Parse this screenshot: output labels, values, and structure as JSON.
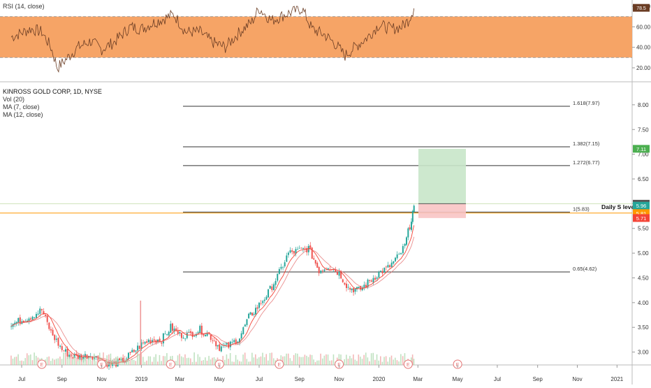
{
  "rsi_panel": {
    "title": "RSI (14, close)",
    "y_ticks": [
      "80.00",
      "60.00",
      "40.00",
      "20.00"
    ],
    "band": {
      "upper": 70,
      "lower": 30,
      "color": "#f6a466"
    },
    "current_label": "78.5"
  },
  "price_panel": {
    "legend": [
      "KINROSS GOLD CORP, 1D, NYSE",
      "Vol (20)",
      "MA (7, close)",
      "MA (12, close)"
    ],
    "y_ticks": [
      "8.00",
      "7.50",
      "7.00",
      "6.50",
      "6.00",
      "5.50",
      "5.00",
      "4.50",
      "4.00",
      "3.50",
      "3.00"
    ],
    "price_tags": [
      {
        "value": "7.11",
        "color": "#4caf50"
      },
      {
        "value": "6.00",
        "color": "#555555"
      },
      {
        "value": "5.96",
        "color": "#26a69a"
      },
      {
        "value": "5.81",
        "color": "#ff9800"
      },
      {
        "value": "5.71",
        "color": "#f44336"
      }
    ],
    "daily_level_label": "Daily S level",
    "earnings_marker": "E"
  },
  "x_ticks": [
    "Jul",
    "Sep",
    "Nov",
    "2019",
    "Mar",
    "May",
    "Jul",
    "Sep",
    "Nov",
    "2020",
    "Mar",
    "May",
    "Jul",
    "Sep",
    "Nov",
    "2021"
  ],
  "chart_data": {
    "type": "candlestick",
    "title": "KINROSS GOLD CORP, 1D, NYSE",
    "ylim": [
      2.65,
      8.35
    ],
    "fib_levels": [
      {
        "label": "1.618(7.97)",
        "value": 7.97
      },
      {
        "label": "1.382(7.15)",
        "value": 7.15
      },
      {
        "label": "1.272(6.77)",
        "value": 6.77
      },
      {
        "label": "1(5.83)",
        "value": 5.83
      },
      {
        "label": "0.65(4.62)",
        "value": 4.62
      }
    ],
    "daily_s_level": 5.81,
    "position": {
      "entry": 6.0,
      "target": 7.11,
      "stop": 5.71
    },
    "price_path": [
      [
        "2018-06-15",
        3.56
      ],
      [
        "2018-07-15",
        3.72
      ],
      [
        "2018-08-01",
        3.85
      ],
      [
        "2018-08-15",
        3.4
      ],
      [
        "2018-09-01",
        3.05
      ],
      [
        "2018-09-15",
        2.92
      ],
      [
        "2018-10-01",
        2.9
      ],
      [
        "2018-10-15",
        2.95
      ],
      [
        "2018-11-01",
        2.82
      ],
      [
        "2018-11-15",
        2.75
      ],
      [
        "2018-12-01",
        2.8
      ],
      [
        "2018-12-15",
        2.95
      ],
      [
        "2019-01-01",
        3.15
      ],
      [
        "2019-01-15",
        3.25
      ],
      [
        "2019-02-01",
        3.25
      ],
      [
        "2019-02-15",
        3.5
      ],
      [
        "2019-03-01",
        3.35
      ],
      [
        "2019-03-15",
        3.35
      ],
      [
        "2019-04-01",
        3.45
      ],
      [
        "2019-04-15",
        3.35
      ],
      [
        "2019-05-01",
        3.1
      ],
      [
        "2019-05-15",
        3.12
      ],
      [
        "2019-06-01",
        3.3
      ],
      [
        "2019-06-15",
        3.7
      ],
      [
        "2019-07-01",
        3.95
      ],
      [
        "2019-07-15",
        4.2
      ],
      [
        "2019-08-01",
        4.6
      ],
      [
        "2019-08-15",
        5.0
      ],
      [
        "2019-09-01",
        5.05
      ],
      [
        "2019-09-15",
        5.1
      ],
      [
        "2019-10-01",
        4.65
      ],
      [
        "2019-10-15",
        4.75
      ],
      [
        "2019-11-01",
        4.6
      ],
      [
        "2019-11-15",
        4.3
      ],
      [
        "2019-12-01",
        4.25
      ],
      [
        "2019-12-15",
        4.4
      ],
      [
        "2020-01-01",
        4.6
      ],
      [
        "2020-01-15",
        4.7
      ],
      [
        "2020-02-01",
        4.95
      ],
      [
        "2020-02-10",
        5.15
      ],
      [
        "2020-02-20",
        5.7
      ],
      [
        "2020-02-24",
        5.96
      ]
    ],
    "rsi_path": [
      [
        "2018-06-15",
        50
      ],
      [
        "2018-07-15",
        58
      ],
      [
        "2018-08-01",
        55
      ],
      [
        "2018-08-15",
        40
      ],
      [
        "2018-08-25",
        20
      ],
      [
        "2018-09-10",
        30
      ],
      [
        "2018-09-25",
        40
      ],
      [
        "2018-10-15",
        46
      ],
      [
        "2018-11-01",
        38
      ],
      [
        "2018-11-20",
        45
      ],
      [
        "2018-12-15",
        60
      ],
      [
        "2019-01-01",
        58
      ],
      [
        "2019-01-20",
        64
      ],
      [
        "2019-02-20",
        72
      ],
      [
        "2019-03-10",
        55
      ],
      [
        "2019-04-01",
        55
      ],
      [
        "2019-04-20",
        45
      ],
      [
        "2019-05-10",
        40
      ],
      [
        "2019-06-01",
        55
      ],
      [
        "2019-06-20",
        65
      ],
      [
        "2019-07-01",
        78
      ],
      [
        "2019-07-20",
        66
      ],
      [
        "2019-08-10",
        72
      ],
      [
        "2019-09-05",
        78
      ],
      [
        "2019-09-20",
        58
      ],
      [
        "2019-10-10",
        52
      ],
      [
        "2019-10-25",
        44
      ],
      [
        "2019-11-10",
        32
      ],
      [
        "2019-11-25",
        40
      ],
      [
        "2019-12-15",
        50
      ],
      [
        "2020-01-01",
        62
      ],
      [
        "2020-01-20",
        58
      ],
      [
        "2020-02-05",
        60
      ],
      [
        "2020-02-15",
        66
      ],
      [
        "2020-02-24",
        78
      ]
    ],
    "earnings_dates": [
      "2018-08-01",
      "2018-11-01",
      "2019-02-15",
      "2019-05-01",
      "2019-08-01",
      "2019-11-01",
      "2020-02-15",
      "2020-05-01"
    ],
    "volume_spike_date": "2018-12-31"
  }
}
